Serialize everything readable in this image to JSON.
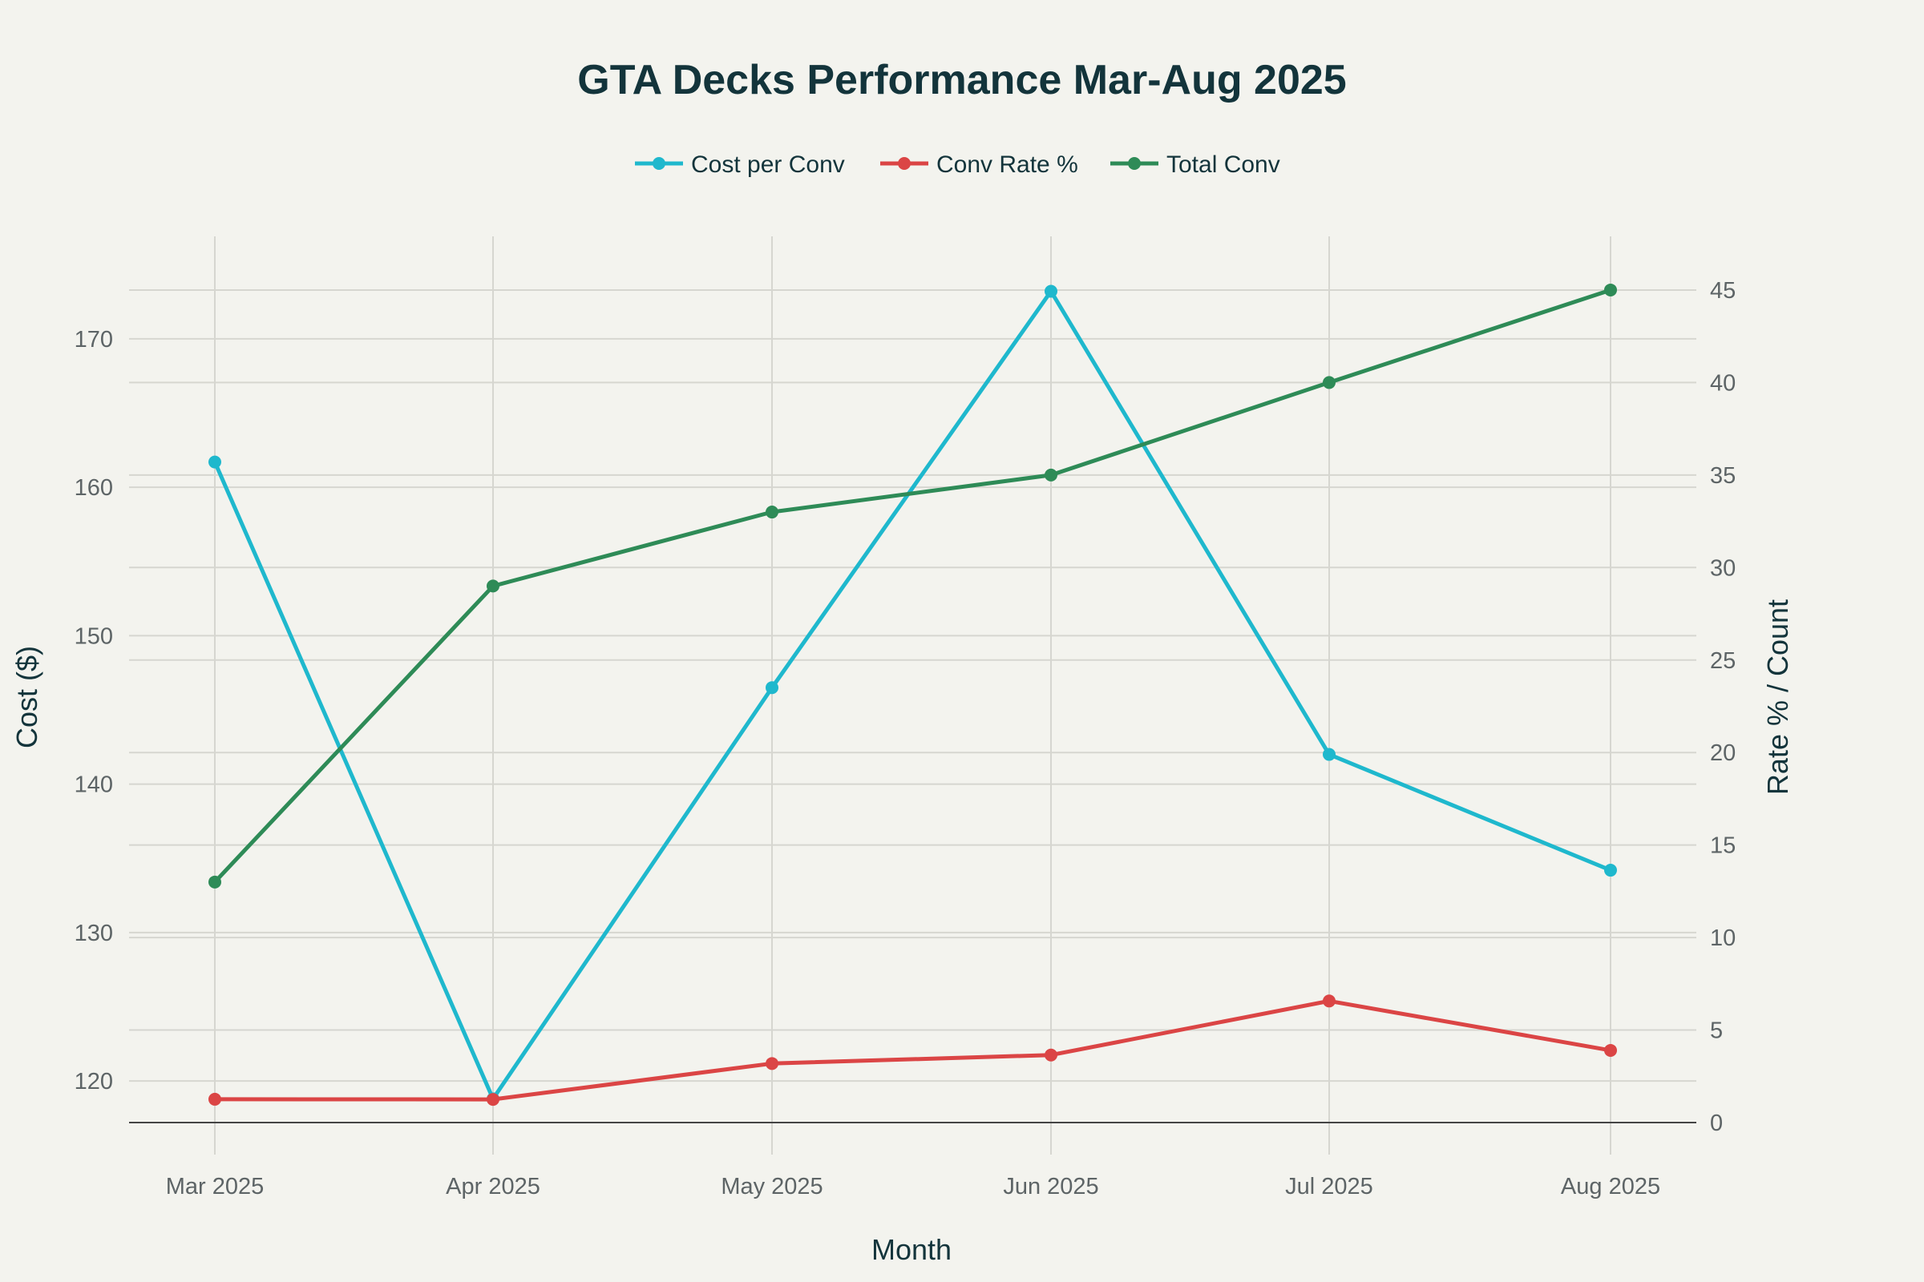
{
  "chart_data": {
    "type": "line",
    "title": "GTA Decks Performance Mar-Aug 2025",
    "xlabel": "Month",
    "ylabel": "Cost ($)",
    "y2label": "Rate % / Count",
    "categories": [
      "Mar 2025",
      "Apr 2025",
      "May 2025",
      "Jun 2025",
      "Jul 2025",
      "Aug 2025"
    ],
    "ylim": [
      117.2,
      176.9
    ],
    "y2lim": [
      0,
      47.9
    ],
    "yticks": [
      120,
      130,
      140,
      150,
      160,
      170
    ],
    "y2ticks": [
      0,
      5,
      10,
      15,
      20,
      25,
      30,
      35,
      40,
      45
    ],
    "grid": true,
    "legend_position": "top-center",
    "series": [
      {
        "name": "Cost per Conv",
        "axis": "left",
        "color": "#1fb8cd",
        "values": [
          161.7,
          118.8,
          146.5,
          173.2,
          142.0,
          134.2
        ]
      },
      {
        "name": "Conv Rate %",
        "axis": "right",
        "color": "#db4545",
        "values": [
          1.26,
          1.25,
          3.19,
          3.65,
          6.57,
          3.9
        ]
      },
      {
        "name": "Total Conv",
        "axis": "right",
        "color": "#2e8b57",
        "values": [
          13,
          29,
          33,
          35,
          40,
          45
        ]
      }
    ]
  }
}
